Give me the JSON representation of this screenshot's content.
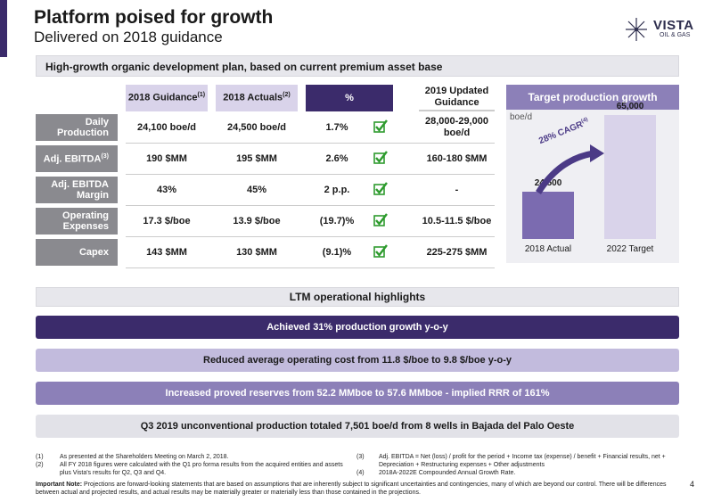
{
  "header": {
    "title": "Platform poised for growth",
    "subtitle": "Delivered on 2018 guidance",
    "logo_text": "VISTA",
    "logo_sub": "OIL & GAS"
  },
  "banner": "High-growth organic development plan, based on current premium  asset base",
  "table": {
    "col_guidance": "2018 Guidance",
    "col_guidance_sup": "(1)",
    "col_actuals": "2018 Actuals",
    "col_actuals_sup": "(2)",
    "col_pct": "%",
    "col_updated": "2019 Updated Guidance",
    "rows": [
      {
        "label": "Daily Production",
        "guidance": "24,100 boe/d",
        "actuals": "24,500 boe/d",
        "pct": "1.7%",
        "updated": "28,000-29,000 boe/d"
      },
      {
        "label": "Adj. EBITDA",
        "label_sup": "(3)",
        "guidance": "190 $MM",
        "actuals": "195 $MM",
        "pct": "2.6%",
        "updated": "160-180 $MM"
      },
      {
        "label": "Adj. EBITDA Margin",
        "guidance": "43%",
        "actuals": "45%",
        "pct": "2 p.p.",
        "updated": "-"
      },
      {
        "label": "Operating Expenses",
        "guidance": "17.3 $/boe",
        "actuals": "13.9 $/boe",
        "pct": "(19.7)%",
        "updated": "10.5-11.5 $/boe"
      },
      {
        "label": "Capex",
        "guidance": "143 $MM",
        "actuals": "130 $MM",
        "pct": "(9.1)%",
        "updated": "225-275 $MM"
      }
    ]
  },
  "chart_data": {
    "type": "bar",
    "title": "Target production growth",
    "ylabel": "boe/d",
    "categories": [
      "2018 Actual",
      "2022 Target"
    ],
    "values": [
      24500,
      65000
    ],
    "value_labels": [
      "24,500",
      "65,000"
    ],
    "annotation": "28% CAGR",
    "annotation_sup": "(4)",
    "ylim": [
      0,
      70000
    ],
    "colors": [
      "#7b6bb0",
      "#d9d3ea"
    ]
  },
  "highlights": {
    "title": "LTM operational highlights",
    "items": [
      "Achieved 31% production growth y-o-y",
      "Reduced average operating cost from 11.8 $/boe to 9.8 $/boe y-o-y",
      "Increased proved reserves from 52.2 MMboe to 57.6 MMboe - implied RRR of 161%",
      "Q3 2019 unconventional production totaled 7,501 boe/d from 8 wells in Bajada del Palo Oeste"
    ]
  },
  "footnotes": {
    "n1": "(1)",
    "t1": "As presented at the Shareholders Meeting on March 2, 2018.",
    "n2": "(2)",
    "t2": "All FY 2018 figures were calculated with the Q1 pro forma results from the acquired entities and assets plus Vista's results for Q2, Q3 and Q4.",
    "n3": "(3)",
    "t3": "Adj. EBITDA = Net (loss) / profit for the period + Income tax (expense) / benefit + Financial results, net + Depreciation + Restructuring expenses + Other adjustments",
    "n4": "(4)",
    "t4": "2018A-2022E Compounded Annual Growth Rate.",
    "note_label": "Important Note:",
    "note_text": " Projections are forward-looking statements that are based on assumptions that are inherently subject to significant uncertainties and contingencies, many of which are beyond our control. There will be differences between actual and projected results, and actual results may be materially greater or materially less than those contained in the projections."
  },
  "page_number": "4",
  "colors": {
    "brand_purple": "#3b2b6b",
    "mid_purple": "#8c80b8",
    "light_purple": "#d9d3ea",
    "check_green": "#2e9b2e"
  }
}
